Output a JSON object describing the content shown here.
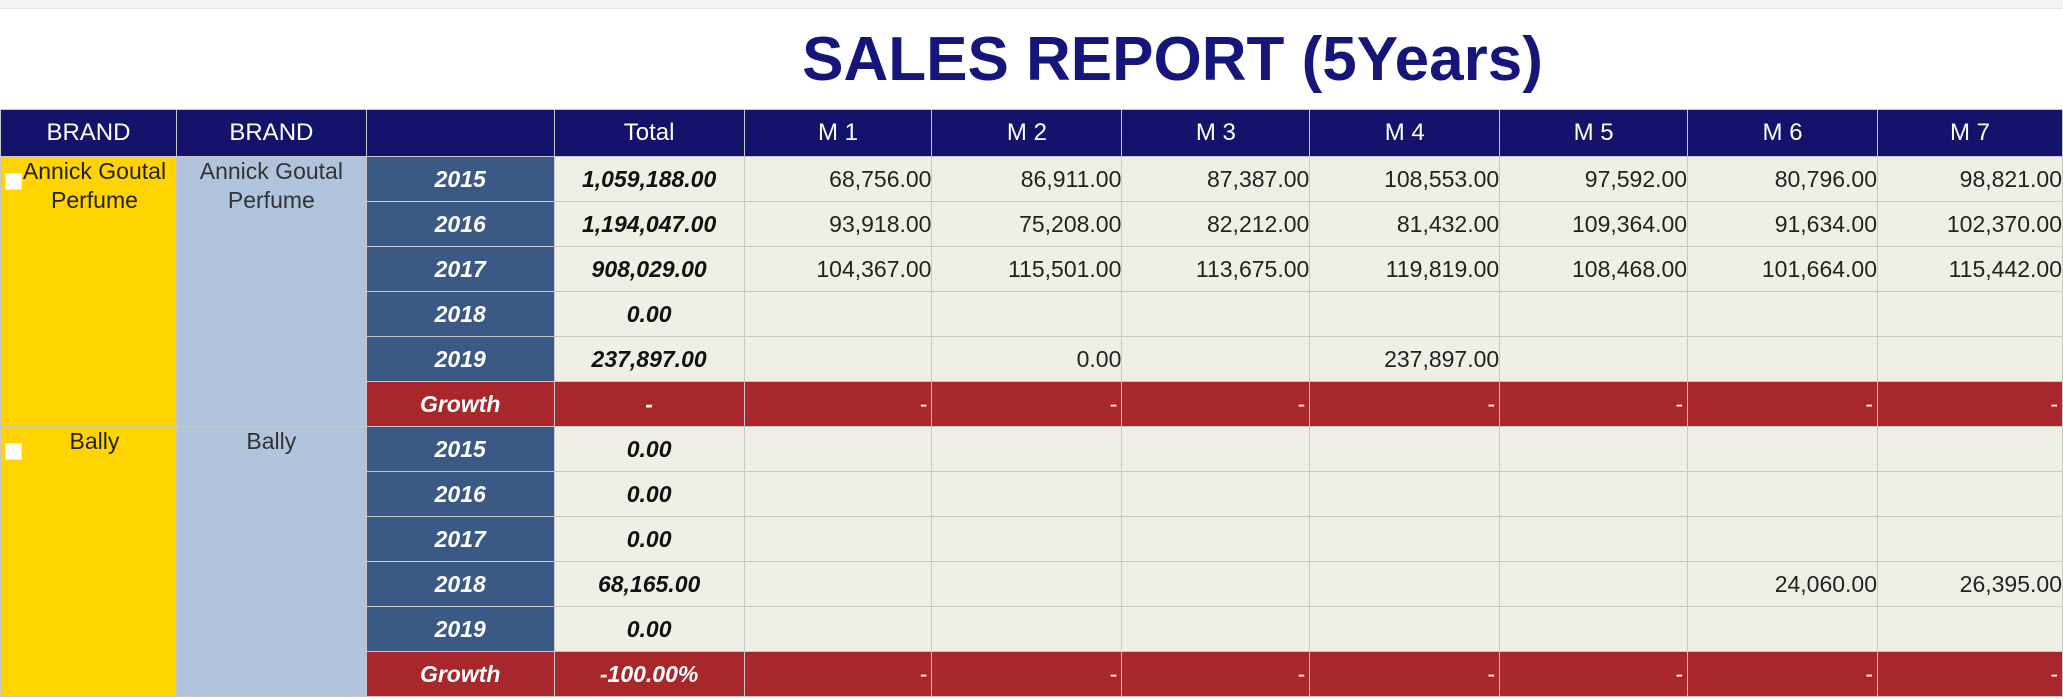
{
  "title": "SALES REPORT (5Years)",
  "colors": {
    "header_bg": "#13136b",
    "brand_bg": "#ffd400",
    "subbrand_bg": "#b0c4de",
    "year_bg": "#3a5a85",
    "growth_bg": "#a8272b",
    "cell_bg": "#f0efe6",
    "title_color": "#15157a"
  },
  "headers": [
    "BRAND",
    "BRAND",
    "",
    "Total",
    "M 1",
    "M 2",
    "M 3",
    "M 4",
    "M 5",
    "M 6",
    "M 7"
  ],
  "groups": [
    {
      "brand": "Annick Goutal Perfume",
      "sub_brand": "Annick Goutal Perfume",
      "checkbox_icon": "checkbox-icon",
      "rows": [
        {
          "label": "2015",
          "total": "1,059,188.00",
          "months": [
            "68,756.00",
            "86,911.00",
            "87,387.00",
            "108,553.00",
            "97,592.00",
            "80,796.00",
            "98,821.00"
          ]
        },
        {
          "label": "2016",
          "total": "1,194,047.00",
          "months": [
            "93,918.00",
            "75,208.00",
            "82,212.00",
            "81,432.00",
            "109,364.00",
            "91,634.00",
            "102,370.00"
          ]
        },
        {
          "label": "2017",
          "total": "908,029.00",
          "months": [
            "104,367.00",
            "115,501.00",
            "113,675.00",
            "119,819.00",
            "108,468.00",
            "101,664.00",
            "115,442.00"
          ]
        },
        {
          "label": "2018",
          "total": "0.00",
          "months": [
            "",
            "",
            "",
            "",
            "",
            "",
            ""
          ]
        },
        {
          "label": "2019",
          "total": "237,897.00",
          "months": [
            "",
            "0.00",
            "",
            "237,897.00",
            "",
            "",
            ""
          ]
        },
        {
          "label": "Growth",
          "total": "-",
          "months": [
            "-",
            "-",
            "-",
            "-",
            "-",
            "-",
            "-"
          ],
          "growth": true
        }
      ]
    },
    {
      "brand": "Bally",
      "sub_brand": "Bally",
      "checkbox_icon": "checkbox-icon",
      "rows": [
        {
          "label": "2015",
          "total": "0.00",
          "months": [
            "",
            "",
            "",
            "",
            "",
            "",
            ""
          ]
        },
        {
          "label": "2016",
          "total": "0.00",
          "months": [
            "",
            "",
            "",
            "",
            "",
            "",
            ""
          ]
        },
        {
          "label": "2017",
          "total": "0.00",
          "months": [
            "",
            "",
            "",
            "",
            "",
            "",
            ""
          ]
        },
        {
          "label": "2018",
          "total": "68,165.00",
          "months": [
            "",
            "",
            "",
            "",
            "",
            "24,060.00",
            "26,395.00"
          ]
        },
        {
          "label": "2019",
          "total": "0.00",
          "months": [
            "",
            "",
            "",
            "",
            "",
            "",
            ""
          ]
        },
        {
          "label": "Growth",
          "total": "-100.00%",
          "months": [
            "-",
            "-",
            "-",
            "-",
            "-",
            "-",
            "-"
          ],
          "growth": true
        }
      ]
    }
  ]
}
